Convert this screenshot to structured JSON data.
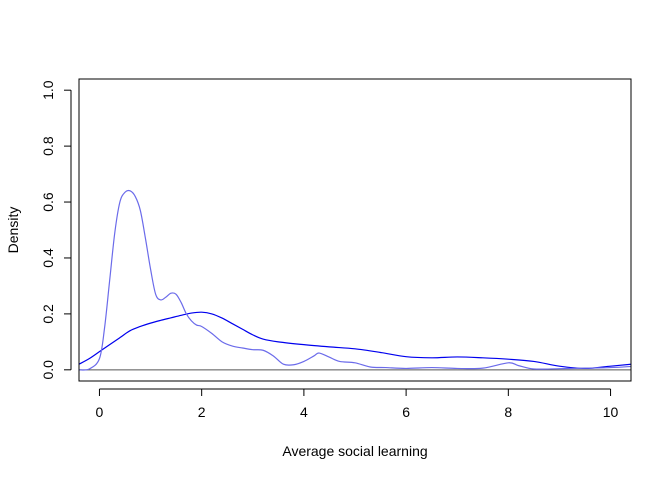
{
  "chart_data": {
    "type": "line",
    "title": "",
    "xlabel": "Average social learning",
    "ylabel": "Density",
    "xlim": [
      -0.4,
      10.4
    ],
    "ylim": [
      -0.04,
      1.04
    ],
    "x_ticks": [
      "0",
      "2",
      "4",
      "6",
      "8",
      "10"
    ],
    "y_ticks": [
      "0.0",
      "0.2",
      "0.4",
      "0.6",
      "0.8",
      "1.0"
    ],
    "grid": false,
    "legend": "none",
    "reference_line": {
      "y": 0,
      "color": "#555555"
    },
    "series": [
      {
        "color": "#0000ee",
        "x": [
          -0.4,
          -0.2,
          0.0,
          0.2,
          0.4,
          0.6,
          0.8,
          1.0,
          1.2,
          1.4,
          1.6,
          1.8,
          2.0,
          2.2,
          2.4,
          2.6,
          2.8,
          3.0,
          3.2,
          3.5,
          4.0,
          4.5,
          5.0,
          5.5,
          6.0,
          6.5,
          7.0,
          7.5,
          8.0,
          8.5,
          9.0,
          9.5,
          10.0,
          10.4
        ],
        "y": [
          0.02,
          0.04,
          0.065,
          0.09,
          0.115,
          0.14,
          0.155,
          0.167,
          0.177,
          0.186,
          0.195,
          0.203,
          0.206,
          0.2,
          0.185,
          0.165,
          0.145,
          0.125,
          0.11,
          0.1,
          0.09,
          0.082,
          0.075,
          0.062,
          0.047,
          0.043,
          0.046,
          0.043,
          0.038,
          0.03,
          0.013,
          0.005,
          0.013,
          0.02
        ]
      },
      {
        "color": "#6b6bea",
        "x": [
          -0.4,
          -0.2,
          0.0,
          0.1,
          0.2,
          0.3,
          0.4,
          0.5,
          0.6,
          0.7,
          0.8,
          0.9,
          1.0,
          1.1,
          1.2,
          1.3,
          1.4,
          1.5,
          1.6,
          1.7,
          1.8,
          1.9,
          2.0,
          2.2,
          2.4,
          2.6,
          2.8,
          3.0,
          3.2,
          3.4,
          3.6,
          3.8,
          4.0,
          4.2,
          4.3,
          4.5,
          4.7,
          5.0,
          5.3,
          5.6,
          6.0,
          6.5,
          7.0,
          7.5,
          8.0,
          8.2,
          8.5,
          9.0,
          9.5,
          10.0,
          10.4
        ],
        "y": [
          0.0,
          0.003,
          0.04,
          0.15,
          0.32,
          0.49,
          0.6,
          0.635,
          0.64,
          0.62,
          0.57,
          0.47,
          0.36,
          0.27,
          0.25,
          0.26,
          0.274,
          0.27,
          0.24,
          0.2,
          0.175,
          0.16,
          0.155,
          0.13,
          0.1,
          0.085,
          0.078,
          0.072,
          0.07,
          0.05,
          0.02,
          0.018,
          0.03,
          0.05,
          0.06,
          0.045,
          0.03,
          0.025,
          0.01,
          0.008,
          0.005,
          0.008,
          0.005,
          0.006,
          0.025,
          0.015,
          0.003,
          0.004,
          0.006,
          0.008,
          0.012
        ]
      }
    ]
  }
}
